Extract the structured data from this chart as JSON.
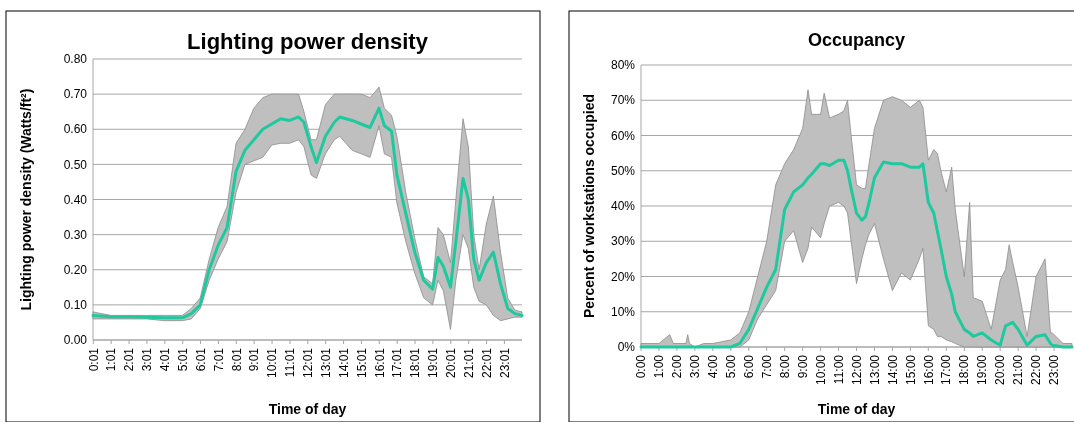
{
  "chart_data": [
    {
      "type": "line",
      "title": "Lighting power density",
      "xlabel": "Time of day",
      "ylabel": "Lighting power density (Watts/ft²)",
      "xlim": [
        0,
        24
      ],
      "ylim": [
        0,
        0.8
      ],
      "yticks": [
        {
          "value": 0,
          "label": "0.00"
        },
        {
          "value": 0.1,
          "label": "0.10"
        },
        {
          "value": 0.2,
          "label": "0.20"
        },
        {
          "value": 0.3,
          "label": "0.30"
        },
        {
          "value": 0.4,
          "label": "0.40"
        },
        {
          "value": 0.5,
          "label": "0.50"
        },
        {
          "value": 0.6,
          "label": "0.60"
        },
        {
          "value": 0.7,
          "label": "0.70"
        },
        {
          "value": 0.8,
          "label": "0.80"
        }
      ],
      "xticks": [
        {
          "value": 0.0167,
          "label": "0:01"
        },
        {
          "value": 1.0167,
          "label": "1:01"
        },
        {
          "value": 2.0167,
          "label": "2:01"
        },
        {
          "value": 3.0167,
          "label": "3:01"
        },
        {
          "value": 4.0167,
          "label": "4:01"
        },
        {
          "value": 5.0167,
          "label": "5:01"
        },
        {
          "value": 6.0167,
          "label": "6:01"
        },
        {
          "value": 7.0167,
          "label": "7:01"
        },
        {
          "value": 8.0167,
          "label": "8:01"
        },
        {
          "value": 9.0167,
          "label": "9:01"
        },
        {
          "value": 10.0167,
          "label": "10:01"
        },
        {
          "value": 11.0167,
          "label": "11:01"
        },
        {
          "value": 12.0167,
          "label": "12:01"
        },
        {
          "value": 13.0167,
          "label": "13:01"
        },
        {
          "value": 14.0167,
          "label": "14:01"
        },
        {
          "value": 15.0167,
          "label": "15:01"
        },
        {
          "value": 16.0167,
          "label": "16:01"
        },
        {
          "value": 17.0167,
          "label": "17:01"
        },
        {
          "value": 18.0167,
          "label": "18:01"
        },
        {
          "value": 19.0167,
          "label": "19:01"
        },
        {
          "value": 20.0167,
          "label": "20:01"
        },
        {
          "value": 21.0167,
          "label": "21:01"
        },
        {
          "value": 22.0167,
          "label": "22:01"
        },
        {
          "value": 23.0167,
          "label": "23:01"
        }
      ],
      "grid": "y",
      "x": [
        0,
        1,
        2,
        3,
        4,
        5,
        5.5,
        6,
        6.5,
        7,
        7.5,
        8,
        8.5,
        9,
        9.5,
        10,
        10.5,
        11,
        11.5,
        11.8,
        12.2,
        12.5,
        13,
        13.5,
        13.8,
        14.5,
        15,
        15.5,
        16,
        16.3,
        16.7,
        17,
        17.5,
        18,
        18.5,
        19,
        19.3,
        19.6,
        20,
        20.3,
        20.7,
        21,
        21.3,
        21.6,
        22,
        22.4,
        22.8,
        23.2,
        23.6,
        24
      ],
      "series": [
        {
          "color": "#1fc99e",
          "values": [
            0.07,
            0.066,
            0.066,
            0.065,
            0.063,
            0.063,
            0.075,
            0.1,
            0.2,
            0.27,
            0.32,
            0.48,
            0.54,
            0.57,
            0.6,
            0.615,
            0.63,
            0.625,
            0.635,
            0.62,
            0.55,
            0.505,
            0.58,
            0.62,
            0.635,
            0.625,
            0.615,
            0.605,
            0.66,
            0.61,
            0.595,
            0.47,
            0.36,
            0.25,
            0.17,
            0.145,
            0.235,
            0.21,
            0.15,
            0.28,
            0.46,
            0.4,
            0.23,
            0.17,
            0.22,
            0.25,
            0.16,
            0.09,
            0.075,
            0.07
          ],
          "upper": [
            0.08,
            0.07,
            0.07,
            0.07,
            0.07,
            0.07,
            0.09,
            0.12,
            0.23,
            0.32,
            0.38,
            0.56,
            0.6,
            0.66,
            0.69,
            0.7,
            0.7,
            0.7,
            0.7,
            0.65,
            0.57,
            0.57,
            0.67,
            0.7,
            0.7,
            0.7,
            0.7,
            0.69,
            0.72,
            0.66,
            0.64,
            0.58,
            0.42,
            0.29,
            0.18,
            0.16,
            0.32,
            0.3,
            0.22,
            0.4,
            0.63,
            0.55,
            0.3,
            0.2,
            0.33,
            0.41,
            0.25,
            0.12,
            0.085,
            0.08
          ],
          "lower": [
            0.06,
            0.06,
            0.06,
            0.06,
            0.055,
            0.055,
            0.06,
            0.09,
            0.17,
            0.23,
            0.28,
            0.42,
            0.5,
            0.51,
            0.52,
            0.555,
            0.56,
            0.56,
            0.57,
            0.55,
            0.47,
            0.46,
            0.53,
            0.57,
            0.58,
            0.54,
            0.53,
            0.52,
            0.61,
            0.53,
            0.52,
            0.39,
            0.28,
            0.19,
            0.12,
            0.1,
            0.17,
            0.14,
            0.03,
            0.17,
            0.3,
            0.26,
            0.15,
            0.11,
            0.1,
            0.07,
            0.055,
            0.06,
            0.065,
            0.065
          ]
        }
      ]
    },
    {
      "type": "line",
      "title": "Occupancy",
      "xlabel": "Time of day",
      "ylabel": "Percent of workstations occupied",
      "xlim": [
        0,
        24
      ],
      "ylim": [
        0,
        80
      ],
      "yticks": [
        {
          "value": 0,
          "label": "0%"
        },
        {
          "value": 10,
          "label": "10%"
        },
        {
          "value": 20,
          "label": "20%"
        },
        {
          "value": 30,
          "label": "30%"
        },
        {
          "value": 40,
          "label": "40%"
        },
        {
          "value": 50,
          "label": "50%"
        },
        {
          "value": 60,
          "label": "60%"
        },
        {
          "value": 70,
          "label": "70%"
        },
        {
          "value": 80,
          "label": "80%"
        }
      ],
      "xticks": [
        {
          "value": 0,
          "label": "0:00"
        },
        {
          "value": 1,
          "label": "1:00"
        },
        {
          "value": 2,
          "label": "2:00"
        },
        {
          "value": 3,
          "label": "3:00"
        },
        {
          "value": 4,
          "label": "4:00"
        },
        {
          "value": 5,
          "label": "5:00"
        },
        {
          "value": 6,
          "label": "6:00"
        },
        {
          "value": 7,
          "label": "7:00"
        },
        {
          "value": 8,
          "label": "8:00"
        },
        {
          "value": 9,
          "label": "9:00"
        },
        {
          "value": 10,
          "label": "10:00"
        },
        {
          "value": 11,
          "label": "11:00"
        },
        {
          "value": 12,
          "label": "12:00"
        },
        {
          "value": 13,
          "label": "13:00"
        },
        {
          "value": 14,
          "label": "14:00"
        },
        {
          "value": 15,
          "label": "15:00"
        },
        {
          "value": 16,
          "label": "16:00"
        },
        {
          "value": 17,
          "label": "17:00"
        },
        {
          "value": 18,
          "label": "18:00"
        },
        {
          "value": 19,
          "label": "19:00"
        },
        {
          "value": 20,
          "label": "20:00"
        },
        {
          "value": 21,
          "label": "21:00"
        },
        {
          "value": 22,
          "label": "22:00"
        },
        {
          "value": 23,
          "label": "23:00"
        }
      ],
      "grid": "y",
      "x": [
        0,
        1,
        1.6,
        1.8,
        2.5,
        2.6,
        2.7,
        3,
        3.5,
        4,
        5,
        5.5,
        6,
        6.5,
        7,
        7.5,
        8,
        8.5,
        9,
        9.3,
        9.5,
        10,
        10.2,
        10.5,
        11,
        11.3,
        11.5,
        11.7,
        12,
        12.3,
        12.5,
        12.7,
        13,
        13.5,
        14,
        14.5,
        15,
        15.5,
        15.7,
        16,
        16.3,
        16.5,
        16.7,
        17,
        17.3,
        17.5,
        18,
        18.3,
        18.5,
        19,
        19.5,
        20,
        20.3,
        20.5,
        20.7,
        21,
        21.5,
        22,
        22.5,
        22.8,
        22.9,
        23.5,
        24
      ],
      "series": [
        {
          "color": "#1fc99e",
          "values": [
            0,
            0,
            0,
            0,
            0,
            0,
            0,
            0,
            0,
            0,
            0,
            1,
            5,
            11,
            17,
            22,
            39,
            44,
            46,
            48,
            49,
            52,
            52,
            51.5,
            53,
            53,
            50,
            45,
            38,
            36,
            37,
            41,
            48,
            52.5,
            52,
            52,
            51,
            51,
            52,
            41,
            38,
            33,
            28,
            20,
            15,
            10,
            5,
            4,
            3,
            4,
            2,
            0.5,
            6,
            6.5,
            7,
            5,
            0.5,
            3,
            3.5,
            1,
            0.5,
            0,
            0
          ],
          "upper": [
            1,
            1,
            3.5,
            1,
            1,
            3.5,
            1,
            0,
            1,
            1,
            2,
            4,
            10,
            20,
            30,
            46,
            52,
            56,
            62,
            73,
            66,
            66,
            72,
            65,
            66,
            67,
            70,
            60,
            46,
            45,
            45,
            52,
            62,
            70,
            71,
            70,
            68,
            70,
            68,
            53,
            56,
            55,
            50,
            44,
            51,
            39,
            20,
            41,
            14,
            13,
            5,
            19,
            22,
            29,
            24,
            17,
            3,
            20,
            25,
            4,
            4,
            1,
            1
          ],
          "lower": [
            0,
            0,
            0,
            0,
            0,
            0,
            0,
            0,
            0,
            0,
            0,
            0,
            2,
            8,
            12,
            16,
            30,
            33,
            24,
            28,
            34,
            31,
            35,
            40,
            41,
            40,
            38,
            30,
            18,
            25,
            29,
            32,
            35,
            25,
            16,
            21,
            19,
            25,
            28,
            6,
            5,
            3,
            3,
            2,
            1.5,
            1,
            0,
            0,
            0,
            0,
            0,
            0,
            0,
            0,
            0,
            0,
            0,
            0,
            0,
            0,
            0,
            0,
            0
          ]
        }
      ]
    }
  ]
}
